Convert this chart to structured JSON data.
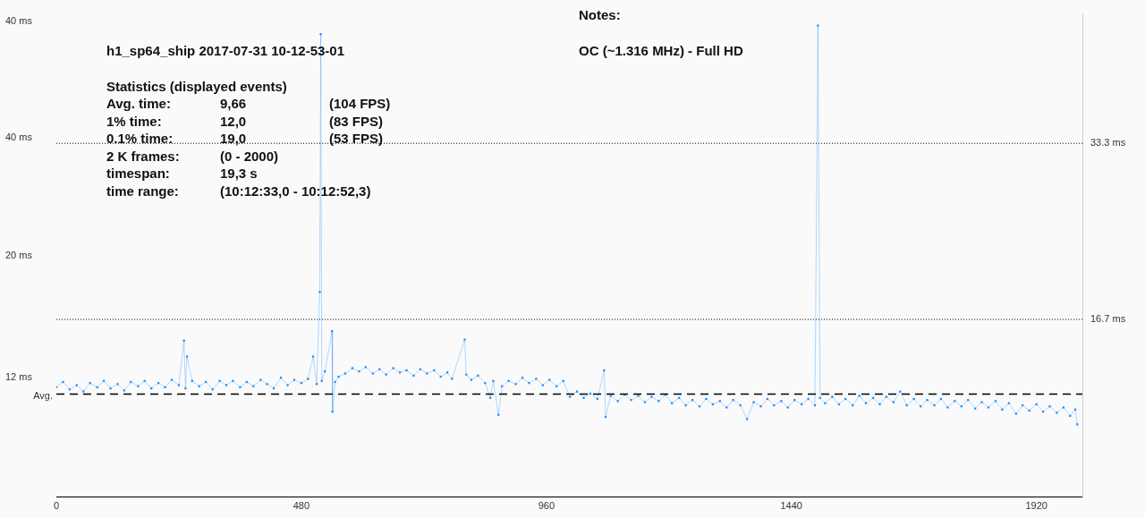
{
  "chart_data": {
    "type": "line",
    "title": "h1_sp64_ship 2017-07-31 10-12-53-01",
    "annotations": [
      "40 ms",
      "40 ms",
      "20 ms",
      "12 ms",
      "Statistics (displayed events)",
      "Avg. time:\t9,66\t(104 FPS)",
      "1% time:\t12,0\t(83 FPS)",
      "0.1% time:\t19,0\t(53 FPS)",
      "2 K frames:\t(0 - 2000)",
      "timespan:\t19,3 s",
      "time range:\t(10:12:33,0 - 10:12:52,3)",
      "Notes:",
      "OC (~1.316 MHz) - Full HD"
    ],
    "x": [
      0,
      13,
      26,
      40,
      53,
      66,
      80,
      93,
      106,
      120,
      133,
      146,
      160,
      173,
      186,
      200,
      213,
      226,
      240,
      250,
      253,
      256,
      266,
      280,
      293,
      306,
      320,
      333,
      346,
      360,
      373,
      386,
      400,
      413,
      426,
      440,
      453,
      466,
      480,
      493,
      503,
      510,
      516,
      518,
      520,
      526,
      540,
      541,
      546,
      553,
      566,
      580,
      593,
      606,
      620,
      633,
      646,
      660,
      673,
      686,
      700,
      713,
      726,
      740,
      753,
      766,
      775,
      800,
      803,
      813,
      826,
      840,
      850,
      856,
      866,
      873,
      886,
      900,
      913,
      926,
      940,
      953,
      966,
      980,
      993,
      1006,
      1020,
      1033,
      1046,
      1060,
      1073,
      1076,
      1086,
      1100,
      1113,
      1126,
      1140,
      1153,
      1166,
      1180,
      1193,
      1206,
      1220,
      1233,
      1246,
      1260,
      1273,
      1286,
      1300,
      1313,
      1326,
      1340,
      1353,
      1366,
      1380,
      1393,
      1406,
      1420,
      1433,
      1446,
      1460,
      1473,
      1486,
      1492,
      1496,
      1506,
      1520,
      1533,
      1546,
      1560,
      1573,
      1586,
      1600,
      1613,
      1626,
      1640,
      1653,
      1666,
      1680,
      1693,
      1706,
      1720,
      1733,
      1746,
      1760,
      1773,
      1786,
      1800,
      1813,
      1826,
      1840,
      1853,
      1866,
      1880,
      1893,
      1906,
      1920,
      1933,
      1946,
      1960,
      1973,
      1986,
      1996,
      2000
    ],
    "series": [
      {
        "color": "#1e8fff",
        "values": [
          10.3,
          10.8,
          10.1,
          10.5,
          9.9,
          10.7,
          10.3,
          10.9,
          10.2,
          10.6,
          10.0,
          10.8,
          10.4,
          10.9,
          10.2,
          10.7,
          10.3,
          11.0,
          10.5,
          14.7,
          10.2,
          13.2,
          10.9,
          10.4,
          10.8,
          10.1,
          10.9,
          10.5,
          10.9,
          10.3,
          10.8,
          10.4,
          11.0,
          10.6,
          10.2,
          11.2,
          10.5,
          11.0,
          10.7,
          11.1,
          13.2,
          10.6,
          19.3,
          43.6,
          10.9,
          11.8,
          15.6,
          8.0,
          10.8,
          11.3,
          11.6,
          12.1,
          11.8,
          12.2,
          11.6,
          12.0,
          11.5,
          12.1,
          11.7,
          11.9,
          11.4,
          12.0,
          11.6,
          11.9,
          11.3,
          11.7,
          11.1,
          14.8,
          11.5,
          11.0,
          11.4,
          10.7,
          9.3,
          10.9,
          7.7,
          10.4,
          10.9,
          10.6,
          11.2,
          10.7,
          11.1,
          10.5,
          11.0,
          10.4,
          10.9,
          9.4,
          9.9,
          9.3,
          9.7,
          9.2,
          11.9,
          7.5,
          9.5,
          9.0,
          9.6,
          9.1,
          9.5,
          8.9,
          9.4,
          9.0,
          9.6,
          8.8,
          9.3,
          8.6,
          9.1,
          8.5,
          9.2,
          8.7,
          9.0,
          8.4,
          9.1,
          8.6,
          7.3,
          8.9,
          8.5,
          9.2,
          8.6,
          9.0,
          8.4,
          9.1,
          8.7,
          9.2,
          8.6,
          44.4,
          9.3,
          8.8,
          9.4,
          8.7,
          9.2,
          8.6,
          9.5,
          8.8,
          9.3,
          8.7,
          9.4,
          8.9,
          9.9,
          8.6,
          9.2,
          8.5,
          9.1,
          8.6,
          9.2,
          8.4,
          9.0,
          8.5,
          9.1,
          8.3,
          8.9,
          8.4,
          9.0,
          8.2,
          8.8,
          7.8,
          8.6,
          8.1,
          8.7,
          8.0,
          8.5,
          7.9,
          8.4,
          7.6,
          8.2,
          6.8
        ]
      }
    ],
    "xlim": [
      0,
      2010
    ],
    "xticks": [
      0,
      480,
      960,
      1440,
      1920
    ],
    "ylim": [
      0,
      45.5
    ],
    "yticks": [
      {
        "value": 16.7,
        "label": "16.7 ms"
      },
      {
        "value": 33.3,
        "label": "33.3 ms"
      }
    ],
    "ref_lines": [
      {
        "axis": "y",
        "value": 33.3,
        "line_style": "dotted",
        "color": "#000000"
      },
      {
        "axis": "y",
        "value": 16.7,
        "line_style": "dotted",
        "color": "#000000"
      },
      {
        "axis": "y",
        "value": 9.66,
        "label": "Avg.",
        "line_style": "dashed",
        "color": "#000000"
      }
    ],
    "marker": "square",
    "line_style": "solid"
  }
}
